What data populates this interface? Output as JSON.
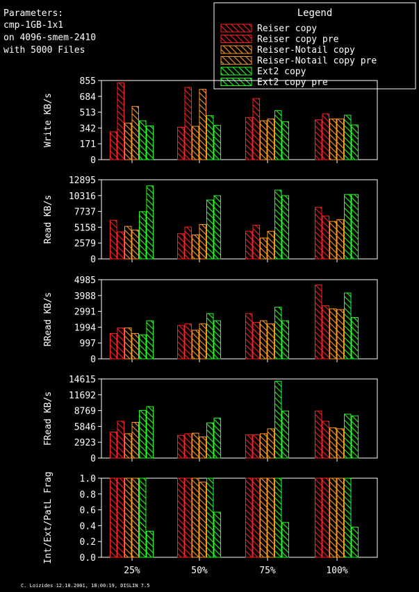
{
  "params": {
    "lines": [
      "Parameters:",
      "cmp-1GB-1x1",
      "on 4096-smem-2410",
      "with 5000 Files"
    ]
  },
  "legend": {
    "title": "Legend",
    "items": [
      {
        "label": "Reiser copy",
        "color": "#ff2020"
      },
      {
        "label": "Reiser copy pre",
        "color": "#ff2020"
      },
      {
        "label": "Reiser-Notail copy",
        "color": "#ff9a20"
      },
      {
        "label": "Reiser-Notail copy pre",
        "color": "#ff9a20"
      },
      {
        "label": "Ext2 copy",
        "color": "#20ff20"
      },
      {
        "label": "Ext2 copy pre",
        "color": "#20ff20"
      }
    ]
  },
  "footer": "C. Loizides 12.10.2001, 18:00:19, DISLIN 7.5",
  "chart_data": [
    {
      "type": "bar",
      "ylabel": "Write KB/s",
      "ylim": [
        0,
        855
      ],
      "yticks": [
        "0",
        "171",
        "342",
        "513",
        "684",
        "855"
      ],
      "categories": [
        "25%",
        "50%",
        "75%",
        "100%"
      ],
      "series": [
        {
          "name": "Reiser copy",
          "values": [
            300,
            350,
            455,
            430
          ]
        },
        {
          "name": "Reiser copy pre",
          "values": [
            830,
            780,
            660,
            495
          ]
        },
        {
          "name": "Reiser-Notail copy",
          "values": [
            395,
            360,
            420,
            440
          ]
        },
        {
          "name": "Reiser-Notail copy pre",
          "values": [
            575,
            760,
            440,
            440
          ]
        },
        {
          "name": "Ext2 copy",
          "values": [
            420,
            475,
            530,
            480
          ]
        },
        {
          "name": "Ext2 copy pre",
          "values": [
            365,
            370,
            410,
            375
          ]
        }
      ]
    },
    {
      "type": "bar",
      "ylabel": "Read KB/s",
      "ylim": [
        0,
        12895
      ],
      "yticks": [
        "0",
        "2579",
        "5158",
        "7737",
        "10316",
        "12895"
      ],
      "categories": [
        "25%",
        "50%",
        "75%",
        "100%"
      ],
      "series": [
        {
          "name": "Reiser copy",
          "values": [
            6300,
            4100,
            4500,
            8400
          ]
        },
        {
          "name": "Reiser copy pre",
          "values": [
            4400,
            5200,
            5500,
            7000
          ]
        },
        {
          "name": "Reiser-Notail copy",
          "values": [
            5300,
            3900,
            3400,
            6100
          ]
        },
        {
          "name": "Reiser-Notail copy pre",
          "values": [
            4700,
            5600,
            4500,
            6400
          ]
        },
        {
          "name": "Ext2 copy",
          "values": [
            7700,
            9600,
            11200,
            10500
          ]
        },
        {
          "name": "Ext2 copy pre",
          "values": [
            11900,
            10300,
            10300,
            10500
          ]
        }
      ]
    },
    {
      "type": "bar",
      "ylabel": "RRead KB/s",
      "ylim": [
        0,
        4985
      ],
      "yticks": [
        "0",
        "997",
        "1994",
        "2991",
        "3988",
        "4985"
      ],
      "categories": [
        "25%",
        "50%",
        "75%",
        "100%"
      ],
      "series": [
        {
          "name": "Reiser copy",
          "values": [
            1600,
            2100,
            2850,
            4650
          ]
        },
        {
          "name": "Reiser copy pre",
          "values": [
            1950,
            2200,
            2300,
            3350
          ]
        },
        {
          "name": "Reiser-Notail copy",
          "values": [
            1950,
            1800,
            2400,
            3150
          ]
        },
        {
          "name": "Reiser-Notail copy pre",
          "values": [
            1600,
            2200,
            2200,
            3100
          ]
        },
        {
          "name": "Ext2 copy",
          "values": [
            1500,
            2850,
            3250,
            4150
          ]
        },
        {
          "name": "Ext2 copy pre",
          "values": [
            2400,
            2400,
            2400,
            2600
          ]
        }
      ]
    },
    {
      "type": "bar",
      "ylabel": "FRead KB/s",
      "ylim": [
        0,
        14615
      ],
      "yticks": [
        "0",
        "2923",
        "5846",
        "8769",
        "11692",
        "14615"
      ],
      "categories": [
        "25%",
        "50%",
        "75%",
        "100%"
      ],
      "series": [
        {
          "name": "Reiser copy",
          "values": [
            4800,
            4200,
            4300,
            8700
          ]
        },
        {
          "name": "Reiser copy pre",
          "values": [
            6800,
            4500,
            4300,
            6800
          ]
        },
        {
          "name": "Reiser-Notail copy",
          "values": [
            4500,
            4600,
            4500,
            5600
          ]
        },
        {
          "name": "Reiser-Notail copy pre",
          "values": [
            6600,
            3900,
            5400,
            5400
          ]
        },
        {
          "name": "Ext2 copy",
          "values": [
            8800,
            6500,
            14200,
            8100
          ]
        },
        {
          "name": "Ext2 copy pre",
          "values": [
            9500,
            7400,
            8700,
            7800
          ]
        }
      ]
    },
    {
      "type": "bar",
      "ylabel": "Int/Ext/PatL Frag",
      "ylim": [
        0,
        1.0
      ],
      "yticks": [
        "0.0",
        "0.2",
        "0.4",
        "0.6",
        "0.8",
        "1.0"
      ],
      "categories": [
        "25%",
        "50%",
        "75%",
        "100%"
      ],
      "series": [
        {
          "name": "Reiser copy",
          "values": [
            1.0,
            1.0,
            1.0,
            1.0
          ]
        },
        {
          "name": "Reiser copy pre",
          "values": [
            1.0,
            1.0,
            1.0,
            1.0
          ]
        },
        {
          "name": "Reiser-Notail copy",
          "values": [
            1.0,
            1.0,
            1.0,
            1.0
          ]
        },
        {
          "name": "Reiser-Notail copy pre",
          "values": [
            1.0,
            0.95,
            1.0,
            1.0
          ]
        },
        {
          "name": "Ext2 copy",
          "values": [
            1.0,
            1.0,
            1.0,
            1.0
          ]
        },
        {
          "name": "Ext2 copy pre",
          "values": [
            0.33,
            0.57,
            0.44,
            0.38
          ]
        }
      ]
    }
  ],
  "xlabels": [
    "25%",
    "50%",
    "75%",
    "100%"
  ]
}
